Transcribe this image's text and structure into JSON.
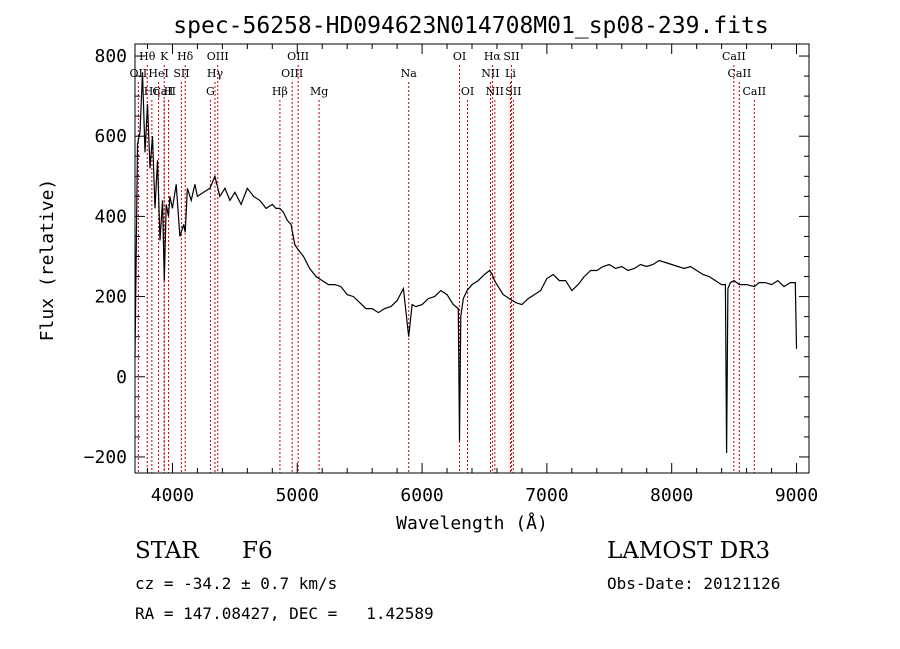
{
  "chart_data": {
    "type": "line",
    "title": "spec-56258-HD094623N014708M01_sp08-239.fits",
    "xlabel": "Wavelength (Å)",
    "ylabel": "Flux (relative)",
    "xlim": [
      3700,
      9100
    ],
    "ylim": [
      -240,
      830
    ],
    "xticks": [
      4000,
      5000,
      6000,
      7000,
      8000,
      9000
    ],
    "yticks": [
      -200,
      0,
      200,
      400,
      600,
      800
    ],
    "grid": false,
    "line_color": "#000000",
    "marker_color": "#cc0000",
    "series": [
      {
        "x": [
          3700,
          3720,
          3740,
          3760,
          3780,
          3800,
          3820,
          3840,
          3860,
          3880,
          3900,
          3920,
          3935,
          3950,
          3968,
          3980,
          4000,
          4030,
          4060,
          4090,
          4102,
          4120,
          4150,
          4180,
          4200,
          4250,
          4300,
          4340,
          4380,
          4420,
          4460,
          4500,
          4550,
          4600,
          4650,
          4700,
          4750,
          4800,
          4830,
          4861,
          4890,
          4920,
          4950,
          4980,
          5000,
          5050,
          5100,
          5150,
          5200,
          5250,
          5300,
          5350,
          5400,
          5450,
          5500,
          5550,
          5600,
          5650,
          5700,
          5750,
          5800,
          5850,
          5893,
          5920,
          5950,
          6000,
          6050,
          6100,
          6150,
          6200,
          6250,
          6290,
          6300,
          6310,
          6330,
          6360,
          6400,
          6450,
          6500,
          6540,
          6563,
          6580,
          6610,
          6650,
          6700,
          6750,
          6800,
          6850,
          6900,
          6950,
          7000,
          7050,
          7100,
          7150,
          7200,
          7250,
          7300,
          7350,
          7400,
          7450,
          7500,
          7550,
          7600,
          7650,
          7700,
          7750,
          7800,
          7850,
          7900,
          7950,
          8000,
          8050,
          8100,
          8150,
          8200,
          8250,
          8300,
          8350,
          8400,
          8430,
          8440,
          8450,
          8470,
          8500,
          8542,
          8600,
          8662,
          8700,
          8750,
          8800,
          8850,
          8900,
          8950,
          8990,
          9000
        ],
        "y": [
          50,
          580,
          610,
          760,
          560,
          680,
          520,
          600,
          420,
          540,
          340,
          440,
          240,
          430,
          400,
          450,
          420,
          480,
          350,
          380,
          360,
          470,
          440,
          480,
          450,
          460,
          470,
          500,
          450,
          470,
          440,
          460,
          430,
          470,
          450,
          440,
          420,
          430,
          420,
          420,
          410,
          390,
          380,
          330,
          320,
          300,
          270,
          250,
          240,
          230,
          230,
          225,
          205,
          200,
          185,
          170,
          170,
          160,
          170,
          175,
          190,
          220,
          100,
          180,
          175,
          180,
          195,
          200,
          215,
          205,
          180,
          170,
          -160,
          150,
          195,
          215,
          230,
          240,
          255,
          265,
          255,
          240,
          225,
          205,
          195,
          185,
          180,
          195,
          205,
          215,
          245,
          255,
          240,
          240,
          215,
          230,
          250,
          265,
          265,
          275,
          280,
          270,
          275,
          265,
          270,
          280,
          275,
          280,
          290,
          285,
          280,
          275,
          270,
          275,
          265,
          255,
          250,
          240,
          230,
          230,
          -190,
          220,
          235,
          240,
          230,
          230,
          225,
          235,
          235,
          230,
          240,
          225,
          235,
          235,
          70
        ]
      }
    ],
    "line_markers": [
      {
        "label": "CaII",
        "x": 3934,
        "row": 2
      },
      {
        "label": "OII",
        "x": 3727,
        "row": 1
      },
      {
        "label": "Hη",
        "x": 3835,
        "row": 2
      },
      {
        "label": "Hθ",
        "x": 3798,
        "row": 0
      },
      {
        "label": "HeI",
        "x": 3889,
        "row": 1
      },
      {
        "label": "K",
        "x": 3934,
        "row": 0
      },
      {
        "label": "SII",
        "x": 4072,
        "row": 1
      },
      {
        "label": "H",
        "x": 3969,
        "row": 2
      },
      {
        "label": "Hδ",
        "x": 4102,
        "row": 0
      },
      {
        "label": "OIII",
        "x": 4363,
        "row": 0
      },
      {
        "label": "Hγ",
        "x": 4341,
        "row": 1
      },
      {
        "label": "G",
        "x": 4304,
        "row": 2
      },
      {
        "label": "Hβ",
        "x": 4861,
        "row": 2
      },
      {
        "label": "OIII",
        "x": 5007,
        "row": 0
      },
      {
        "label": "OIII",
        "x": 4959,
        "row": 1
      },
      {
        "label": "Mg",
        "x": 5175,
        "row": 2
      },
      {
        "label": "Na",
        "x": 5893,
        "row": 1
      },
      {
        "label": "OI",
        "x": 6300,
        "row": 0
      },
      {
        "label": "OI",
        "x": 6364,
        "row": 2
      },
      {
        "label": "Hα",
        "x": 6563,
        "row": 0
      },
      {
        "label": "SII",
        "x": 6716,
        "row": 0
      },
      {
        "label": "NII",
        "x": 6548,
        "row": 1
      },
      {
        "label": "Li",
        "x": 6708,
        "row": 1
      },
      {
        "label": "NII",
        "x": 6583,
        "row": 2
      },
      {
        "label": "SII",
        "x": 6731,
        "row": 2
      },
      {
        "label": "CaII",
        "x": 8498,
        "row": 0
      },
      {
        "label": "CaII",
        "x": 8542,
        "row": 1
      },
      {
        "label": "CaII",
        "x": 8662,
        "row": 2
      }
    ]
  },
  "info": {
    "object_class": "STAR",
    "subclass": "F6",
    "survey": "LAMOST DR3",
    "redshift_line": "cz = -34.2 ± 0.7 km/s",
    "obs_date_line": "Obs-Date: 20121126",
    "coords_line": "RA = 147.08427, DEC =   1.42589"
  }
}
